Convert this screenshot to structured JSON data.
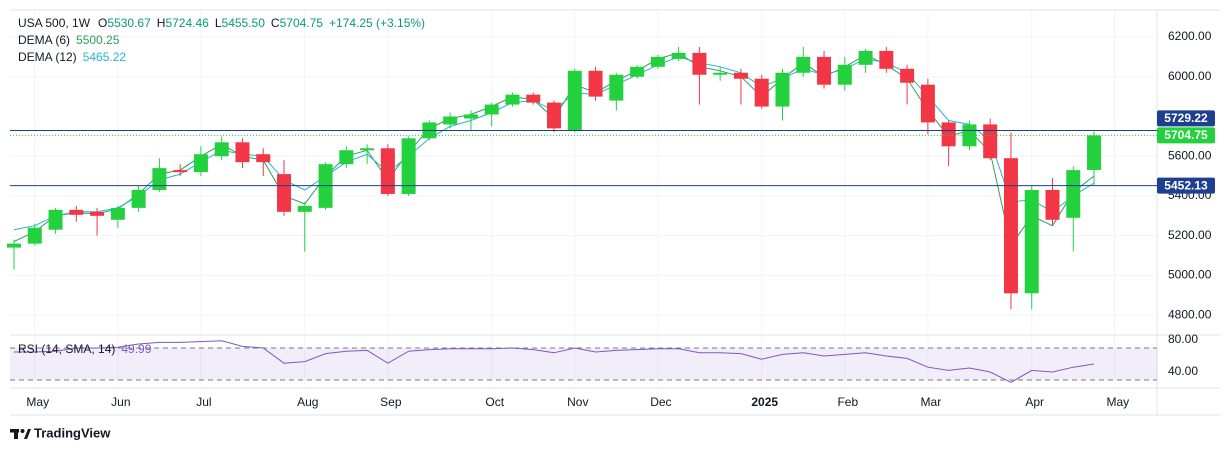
{
  "chart_data": {
    "type": "candlestick",
    "header": {
      "symbol": "USA 500, 1W",
      "fields": [
        {
          "key": "O",
          "value": "5530.67"
        },
        {
          "key": "H",
          "value": "5724.46"
        },
        {
          "key": "L",
          "value": "5455.50"
        },
        {
          "key": "C",
          "value": "5704.75"
        }
      ],
      "change": "+174.25 (+3.15%)"
    },
    "categories": [
      null,
      "May",
      null,
      null,
      null,
      "Jun",
      null,
      null,
      null,
      "Jul",
      null,
      null,
      null,
      null,
      "Aug",
      null,
      null,
      null,
      "Sep",
      null,
      null,
      null,
      null,
      "Oct",
      null,
      null,
      null,
      "Nov",
      null,
      null,
      null,
      "Dec",
      null,
      null,
      null,
      null,
      "2025",
      null,
      null,
      null,
      "Feb",
      null,
      null,
      null,
      "Mar",
      null,
      null,
      null,
      null,
      "Apr",
      null,
      null,
      null,
      "May"
    ],
    "open": [
      5140,
      5160,
      5230,
      5330,
      5320,
      5280,
      5340,
      5430,
      5530,
      5520,
      5600,
      5670,
      5610,
      5510,
      5320,
      5340,
      5560,
      5630,
      5640,
      5410,
      5690,
      5760,
      5790,
      5810,
      5860,
      5910,
      5870,
      5730,
      6030,
      5880,
      6000,
      6050,
      6090,
      6120,
      6010,
      6020,
      5990,
      5850,
      6020,
      6100,
      5960,
      6060,
      6130,
      6040,
      5960,
      5770,
      5650,
      5760,
      5590,
      4910,
      5430,
      5290,
      5530.67,
      null
    ],
    "high": [
      5180,
      5260,
      5340,
      5350,
      5340,
      5350,
      5450,
      5590,
      5560,
      5650,
      5700,
      5690,
      5640,
      5580,
      5370,
      5570,
      5650,
      5660,
      5660,
      5700,
      5780,
      5820,
      5830,
      5870,
      5920,
      5920,
      5880,
      6040,
      6050,
      6020,
      6060,
      6110,
      6150,
      6150,
      6050,
      6040,
      6010,
      6040,
      6150,
      6130,
      6100,
      6140,
      6150,
      6060,
      5990,
      5780,
      5780,
      5790,
      5720,
      5450,
      5490,
      5550,
      5724.46,
      null
    ],
    "low": [
      5030,
      5150,
      5210,
      5270,
      5200,
      5240,
      5320,
      5420,
      5500,
      5500,
      5580,
      5540,
      5500,
      5300,
      5120,
      5330,
      5540,
      5560,
      5400,
      5400,
      5680,
      5740,
      5730,
      5750,
      5850,
      5860,
      5720,
      5720,
      5880,
      5830,
      5990,
      6040,
      6080,
      5860,
      5980,
      5860,
      5840,
      5780,
      6000,
      5940,
      5930,
      6020,
      6020,
      5860,
      5710,
      5550,
      5630,
      5580,
      4830,
      4830,
      5250,
      5120,
      5455.5,
      null
    ],
    "close": [
      5160,
      5240,
      5330,
      5305,
      5300,
      5340,
      5430,
      5540,
      5520,
      5610,
      5670,
      5570,
      5570,
      5320,
      5350,
      5560,
      5630,
      5640,
      5410,
      5690,
      5770,
      5800,
      5810,
      5860,
      5910,
      5870,
      5740,
      6030,
      5900,
      6010,
      6050,
      6100,
      6120,
      6010,
      6020,
      5990,
      5850,
      6020,
      6100,
      5960,
      6060,
      6130,
      6040,
      5970,
      5770,
      5650,
      5760,
      5590,
      4910,
      5430,
      5280,
      5530,
      5704.75,
      null
    ],
    "up_color": "#22d13d",
    "down_color": "#f23645",
    "series": [
      {
        "name": "DEMA (6)",
        "color": "#2e9e5b",
        "values": [
          5170,
          5220,
          5300,
          5315,
          5310,
          5335,
          5410,
          5510,
          5530,
          5600,
          5660,
          5600,
          5580,
          5400,
          5360,
          5500,
          5600,
          5630,
          5480,
          5620,
          5740,
          5790,
          5810,
          5850,
          5900,
          5885,
          5790,
          5960,
          5920,
          5980,
          6030,
          6090,
          6120,
          6050,
          6030,
          6000,
          5900,
          5990,
          6070,
          6000,
          6050,
          6110,
          6060,
          5990,
          5830,
          5700,
          5730,
          5620,
          5150,
          5300,
          5250,
          5420,
          5500.25,
          null
        ]
      },
      {
        "name": "DEMA (12)",
        "color": "#22b5d4",
        "values": [
          5230,
          5250,
          5300,
          5320,
          5320,
          5340,
          5400,
          5480,
          5510,
          5570,
          5630,
          5610,
          5600,
          5480,
          5430,
          5500,
          5570,
          5610,
          5520,
          5600,
          5690,
          5750,
          5780,
          5820,
          5870,
          5880,
          5830,
          5920,
          5910,
          5960,
          6010,
          6060,
          6100,
          6070,
          6050,
          6020,
          5950,
          5990,
          6040,
          6010,
          6040,
          6090,
          6070,
          6020,
          5900,
          5780,
          5760,
          5680,
          5370,
          5380,
          5320,
          5400,
          5465.22,
          null
        ]
      }
    ],
    "ylim": [
      4700,
      6336
    ],
    "yticks": [
      {
        "value": 6200,
        "label": "6200.00"
      },
      {
        "value": 6000,
        "label": "6000.00"
      },
      {
        "value": 5600,
        "label": "5600.00"
      },
      {
        "value": 5400,
        "label": "5400.00"
      },
      {
        "value": 5200,
        "label": "5200.00"
      },
      {
        "value": 5000,
        "label": "5000.00"
      },
      {
        "value": 4800,
        "label": "4800.00"
      }
    ],
    "grid": true,
    "price_lines": [
      {
        "value": 5729.22,
        "color": "#1e3f8f",
        "style": "solid"
      },
      {
        "value": 5704.75,
        "color": "#22d13d",
        "style": "dotted"
      },
      {
        "value": 5452.13,
        "color": "#1e3f8f",
        "style": "solid"
      }
    ],
    "rsi": {
      "name": "RSI (14, SMA, 14)",
      "color": "#7e57c2",
      "values": [
        65,
        65,
        66,
        70,
        70,
        71,
        75,
        77,
        77,
        78,
        79,
        72,
        70,
        51,
        53,
        63,
        66,
        67,
        51,
        66,
        68,
        69,
        69,
        69,
        70,
        68,
        64,
        70,
        65,
        67,
        68,
        69,
        69,
        64,
        64,
        63,
        56,
        62,
        64,
        60,
        62,
        64,
        60,
        57,
        46,
        42,
        45,
        40,
        27,
        42,
        40,
        46,
        49.99,
        null
      ],
      "ylim": [
        20,
        86.25
      ],
      "yticks": [
        {
          "value": 80,
          "label": "80.00"
        },
        {
          "value": 40,
          "label": "40.00"
        }
      ],
      "bands": [
        30,
        70
      ]
    }
  },
  "footer": {
    "brand": "TradingView"
  }
}
